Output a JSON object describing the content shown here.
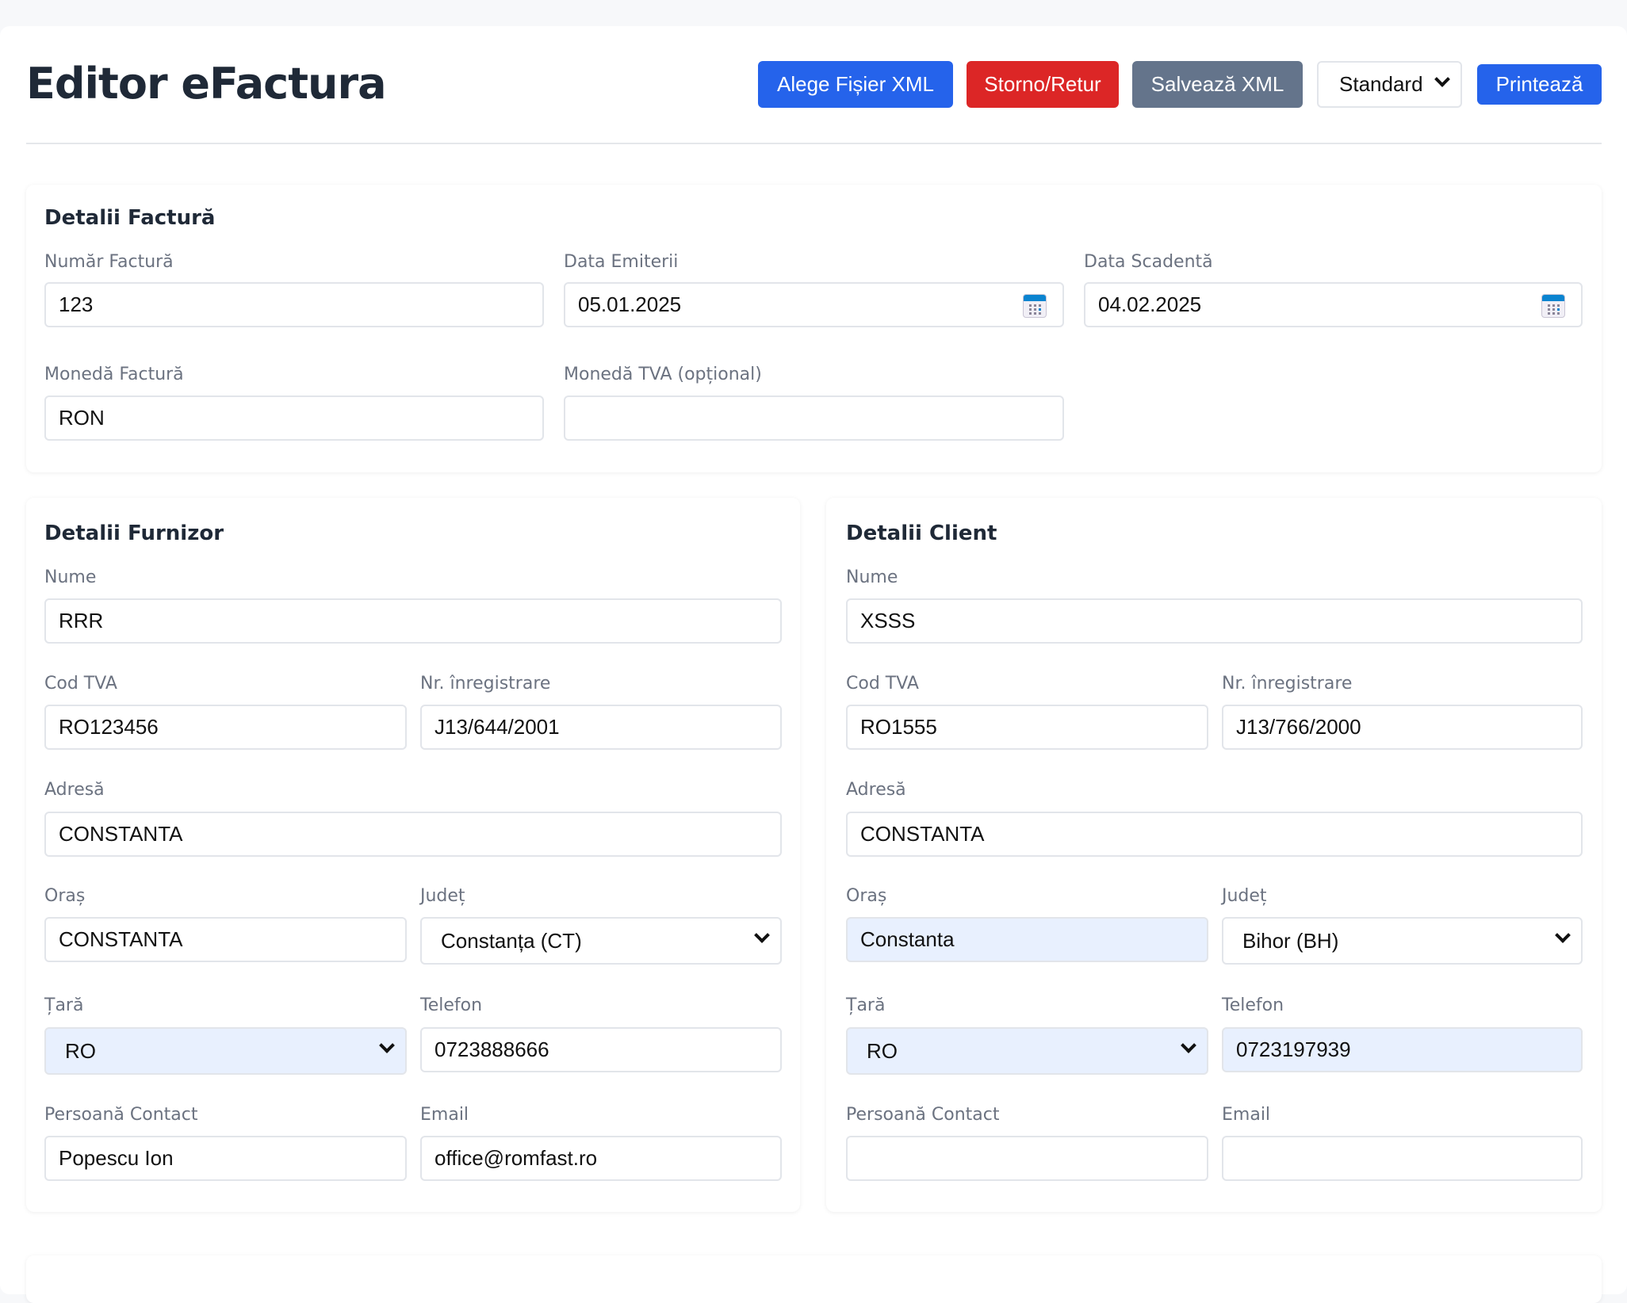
{
  "header": {
    "title": "Editor eFactura",
    "buttons": {
      "choose_xml": "Alege Fișier XML",
      "storno": "Storno/Retur",
      "save_xml": "Salvează XML",
      "template_select": "Standard",
      "print": "Printează"
    }
  },
  "colors": {
    "primary": "#2563eb",
    "danger": "#dc2626",
    "secondary": "#64748b",
    "autofill": "#e8f0fe"
  },
  "invoice": {
    "title": "Detalii Factură",
    "number": {
      "label": "Număr Factură",
      "value": "123"
    },
    "issue_date": {
      "label": "Data Emiterii",
      "value": "05.01.2025"
    },
    "due_date": {
      "label": "Data Scadentă",
      "value": "04.02.2025"
    },
    "currency": {
      "label": "Monedă Factură",
      "value": "RON"
    },
    "vat_currency": {
      "label": "Monedă TVA (opțional)",
      "value": ""
    }
  },
  "supplier": {
    "title": "Detalii Furnizor",
    "name": {
      "label": "Nume",
      "value": "RRR"
    },
    "vat": {
      "label": "Cod TVA",
      "value": "RO123456"
    },
    "reg": {
      "label": "Nr. înregistrare",
      "value": "J13/644/2001"
    },
    "address": {
      "label": "Adresă",
      "value": "CONSTANTA"
    },
    "city": {
      "label": "Oraș",
      "value": "CONSTANTA"
    },
    "county": {
      "label": "Județ",
      "value": "Constanța (CT)"
    },
    "country": {
      "label": "Țară",
      "value": "RO"
    },
    "phone": {
      "label": "Telefon",
      "value": "0723888666"
    },
    "contact": {
      "label": "Persoană Contact",
      "value": "Popescu Ion"
    },
    "email": {
      "label": "Email",
      "value": "office@romfast.ro"
    }
  },
  "client": {
    "title": "Detalii Client",
    "name": {
      "label": "Nume",
      "value": "XSSS"
    },
    "vat": {
      "label": "Cod TVA",
      "value": "RO1555"
    },
    "reg": {
      "label": "Nr. înregistrare",
      "value": "J13/766/2000"
    },
    "address": {
      "label": "Adresă",
      "value": "CONSTANTA"
    },
    "city": {
      "label": "Oraș",
      "value": "Constanta"
    },
    "county": {
      "label": "Județ",
      "value": "Bihor (BH)"
    },
    "country": {
      "label": "Țară",
      "value": "RO"
    },
    "phone": {
      "label": "Telefon",
      "value": "0723197939"
    },
    "contact": {
      "label": "Persoană Contact",
      "value": ""
    },
    "email": {
      "label": "Email",
      "value": ""
    }
  }
}
